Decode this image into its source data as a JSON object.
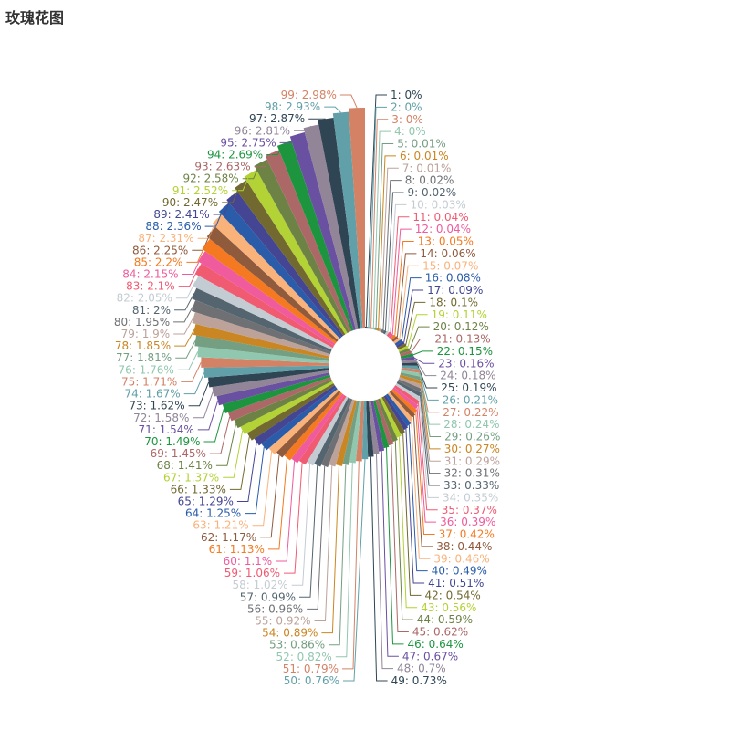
{
  "title": "玫瑰花图",
  "chart_data": {
    "type": "rose",
    "title": "玫瑰花图",
    "palette": [
      "#2f4554",
      "#61a0a8",
      "#d48265",
      "#91c7ae",
      "#749f83",
      "#ca8622",
      "#bda29a",
      "#6e7074",
      "#546570",
      "#c4ccd3",
      "#f05b72",
      "#ef5b9c",
      "#f47920",
      "#905a3d",
      "#fab27b",
      "#2a5caa",
      "#444693",
      "#726930",
      "#b2d235",
      "#6d8346",
      "#ac6767",
      "#1d953f",
      "#6950a1",
      "#918597"
    ],
    "categories": [
      "1",
      "2",
      "3",
      "4",
      "5",
      "6",
      "7",
      "8",
      "9",
      "10",
      "11",
      "12",
      "13",
      "14",
      "15",
      "16",
      "17",
      "18",
      "19",
      "20",
      "21",
      "22",
      "23",
      "24",
      "25",
      "26",
      "27",
      "28",
      "29",
      "30",
      "31",
      "32",
      "33",
      "34",
      "35",
      "36",
      "37",
      "38",
      "39",
      "40",
      "41",
      "42",
      "43",
      "44",
      "45",
      "46",
      "47",
      "48",
      "49",
      "50",
      "51",
      "52",
      "53",
      "54",
      "55",
      "56",
      "57",
      "58",
      "59",
      "60",
      "61",
      "62",
      "63",
      "64",
      "65",
      "66",
      "67",
      "68",
      "69",
      "70",
      "71",
      "72",
      "73",
      "74",
      "75",
      "76",
      "77",
      "78",
      "79",
      "80",
      "81",
      "82",
      "83",
      "84",
      "85",
      "86",
      "87",
      "88",
      "89",
      "90",
      "91",
      "92",
      "93",
      "94",
      "95",
      "96",
      "97",
      "98",
      "99"
    ],
    "values": [
      0,
      0,
      0,
      0,
      0.01,
      0.01,
      0.01,
      0.02,
      0.02,
      0.03,
      0.04,
      0.04,
      0.05,
      0.06,
      0.07,
      0.08,
      0.09,
      0.1,
      0.11,
      0.12,
      0.13,
      0.15,
      0.16,
      0.18,
      0.19,
      0.21,
      0.22,
      0.24,
      0.26,
      0.27,
      0.29,
      0.31,
      0.33,
      0.35,
      0.37,
      0.39,
      0.42,
      0.44,
      0.46,
      0.49,
      0.51,
      0.54,
      0.56,
      0.59,
      0.62,
      0.64,
      0.67,
      0.7,
      0.73,
      0.76,
      0.79,
      0.82,
      0.86,
      0.89,
      0.92,
      0.96,
      0.99,
      1.02,
      1.06,
      1.1,
      1.13,
      1.17,
      1.21,
      1.25,
      1.29,
      1.33,
      1.37,
      1.41,
      1.45,
      1.49,
      1.54,
      1.58,
      1.62,
      1.67,
      1.71,
      1.76,
      1.81,
      1.85,
      1.9,
      1.95,
      2,
      2.05,
      2.1,
      2.15,
      2.2,
      2.25,
      2.31,
      2.36,
      2.41,
      2.47,
      2.52,
      2.58,
      2.63,
      2.69,
      2.75,
      2.81,
      2.87,
      2.93,
      2.98
    ],
    "labels": [
      "1: 0%",
      "2: 0%",
      "3: 0%",
      "4: 0%",
      "5: 0.01%",
      "6: 0.01%",
      "7: 0.01%",
      "8: 0.02%",
      "9: 0.02%",
      "10: 0.03%",
      "11: 0.04%",
      "12: 0.04%",
      "13: 0.05%",
      "14: 0.06%",
      "15: 0.07%",
      "16: 0.08%",
      "17: 0.09%",
      "18: 0.1%",
      "19: 0.11%",
      "20: 0.12%",
      "21: 0.13%",
      "22: 0.15%",
      "23: 0.16%",
      "24: 0.18%",
      "25: 0.19%",
      "26: 0.21%",
      "27: 0.22%",
      "28: 0.24%",
      "29: 0.26%",
      "30: 0.27%",
      "31: 0.29%",
      "32: 0.31%",
      "33: 0.33%",
      "34: 0.35%",
      "35: 0.37%",
      "36: 0.39%",
      "37: 0.42%",
      "38: 0.44%",
      "39: 0.46%",
      "40: 0.49%",
      "41: 0.51%",
      "42: 0.54%",
      "43: 0.56%",
      "44: 0.59%",
      "45: 0.62%",
      "46: 0.64%",
      "47: 0.67%",
      "48: 0.7%",
      "49: 0.73%",
      "50: 0.76%",
      "51: 0.79%",
      "52: 0.82%",
      "53: 0.86%",
      "54: 0.89%",
      "55: 0.92%",
      "56: 0.96%",
      "57: 0.99%",
      "58: 1.02%",
      "59: 1.06%",
      "60: 1.1%",
      "61: 1.13%",
      "62: 1.17%",
      "63: 1.21%",
      "64: 1.25%",
      "65: 1.29%",
      "66: 1.33%",
      "67: 1.37%",
      "68: 1.41%",
      "69: 1.45%",
      "70: 1.49%",
      "71: 1.54%",
      "72: 1.58%",
      "73: 1.62%",
      "74: 1.67%",
      "75: 1.71%",
      "76: 1.76%",
      "77: 1.81%",
      "78: 1.85%",
      "79: 1.9%",
      "80: 1.95%",
      "81: 2%",
      "82: 2.05%",
      "83: 2.1%",
      "84: 2.15%",
      "85: 2.2%",
      "86: 2.25%",
      "87: 2.31%",
      "88: 2.36%",
      "89: 2.41%",
      "90: 2.47%",
      "91: 2.52%",
      "92: 2.58%",
      "93: 2.63%",
      "94: 2.69%",
      "95: 2.75%",
      "96: 2.81%",
      "97: 2.87%",
      "98: 2.93%",
      "99: 2.98%"
    ]
  }
}
